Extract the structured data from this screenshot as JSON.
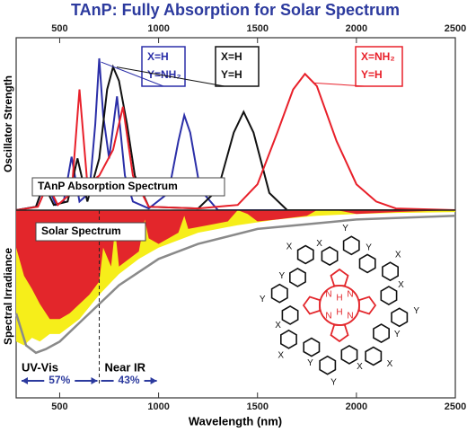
{
  "chart_data": [
    {
      "type": "line",
      "title": "TAnP: Fully Absorption for Solar Spectrum",
      "ylabel": "Oscillator  Strength",
      "label": "TAnP  Absorption  Spectrum",
      "xlim": [
        280,
        2500
      ],
      "xticks": [
        500,
        1000,
        1500,
        2000,
        2500
      ],
      "ylim": [
        0,
        1
      ],
      "series": [
        {
          "color": "#2b2fa8",
          "label_lines": [
            "X=H",
            "Y=NH₂"
          ],
          "x": [
            280,
            380,
            430,
            480,
            520,
            560,
            600,
            650,
            680,
            700,
            720,
            750,
            790,
            830,
            870,
            950,
            1050,
            1100,
            1130,
            1160,
            1210,
            1300,
            2500
          ],
          "values": [
            0,
            0.02,
            0.17,
            0.03,
            0.05,
            0.31,
            0.05,
            0.1,
            0.5,
            0.88,
            0.55,
            0.3,
            0.66,
            0.2,
            0.05,
            0.01,
            0.1,
            0.4,
            0.55,
            0.45,
            0.12,
            0,
            0
          ]
        },
        {
          "color": "#111111",
          "label_lines": [
            "X=H",
            "Y=H"
          ],
          "x": [
            280,
            380,
            420,
            470,
            540,
            590,
            640,
            700,
            740,
            770,
            800,
            840,
            880,
            950,
            1200,
            1300,
            1380,
            1430,
            1480,
            1560,
            1650,
            2500
          ],
          "values": [
            0,
            0.02,
            0.15,
            0.03,
            0.05,
            0.3,
            0.05,
            0.3,
            0.7,
            0.83,
            0.75,
            0.5,
            0.2,
            0.02,
            0.01,
            0.12,
            0.45,
            0.57,
            0.45,
            0.1,
            0,
            0
          ]
        },
        {
          "color": "#e8202a",
          "label_lines": [
            "X=NH₂",
            "Y=H"
          ],
          "x": [
            280,
            390,
            440,
            490,
            560,
            600,
            640,
            700,
            770,
            820,
            870,
            950,
            1200,
            1400,
            1500,
            1600,
            1680,
            1740,
            1800,
            1900,
            2000,
            2100,
            2200,
            2500
          ],
          "values": [
            0,
            0.02,
            0.15,
            0.03,
            0.1,
            0.7,
            0.15,
            0.2,
            0.35,
            0.6,
            0.2,
            0.02,
            0.01,
            0.03,
            0.15,
            0.45,
            0.7,
            0.79,
            0.72,
            0.4,
            0.15,
            0.05,
            0.01,
            0
          ]
        }
      ]
    },
    {
      "type": "area",
      "ylabel": "Spectral  Irradiance",
      "xlabel": "Wavelength (nm)",
      "label": "Solar  Spectrum",
      "xlim": [
        280,
        2500
      ],
      "xticks": [
        500,
        1000,
        1500,
        2000,
        2500
      ],
      "ylim": [
        0,
        1
      ],
      "divider_x": 700,
      "regions": [
        {
          "label": "UV-Vis",
          "share": "57%"
        },
        {
          "label": "Near  IR",
          "share": "43%"
        }
      ],
      "series": [
        {
          "color": "#f6ee1a",
          "x": [
            280,
            320,
            360,
            400,
            450,
            500,
            550,
            600,
            700,
            800,
            900,
            1000,
            1200,
            1400,
            1600,
            1800,
            2000,
            2200,
            2500
          ],
          "values": [
            0.7,
            0.72,
            0.68,
            0.7,
            0.66,
            0.66,
            0.62,
            0.58,
            0.45,
            0.34,
            0.26,
            0.2,
            0.12,
            0.08,
            0.05,
            0.03,
            0.02,
            0.015,
            0.01
          ]
        },
        {
          "color": "#e3262b",
          "x": [
            280,
            320,
            360,
            400,
            450,
            500,
            550,
            600,
            650,
            700,
            720,
            760,
            780,
            800,
            900,
            930,
            950,
            1000,
            1100,
            1130,
            1150,
            1250,
            1350,
            1400,
            1450,
            1500,
            1600,
            1750,
            1800,
            1900,
            1950,
            2000,
            2200,
            2500
          ],
          "values": [
            0.2,
            0.35,
            0.42,
            0.5,
            0.58,
            0.58,
            0.55,
            0.5,
            0.45,
            0.38,
            0.2,
            0.3,
            0.1,
            0.3,
            0.22,
            0.05,
            0.15,
            0.18,
            0.12,
            0.03,
            0.1,
            0.08,
            0.06,
            0,
            0.02,
            0.06,
            0.05,
            0.03,
            0,
            0,
            0.01,
            0.02,
            0.01,
            0
          ]
        },
        {
          "color": "#8a8a8a",
          "line": true,
          "x": [
            280,
            330,
            380,
            430,
            500,
            600,
            700,
            800,
            1000,
            1200,
            1500,
            2000,
            2500
          ],
          "values": [
            0.55,
            0.72,
            0.76,
            0.74,
            0.7,
            0.6,
            0.5,
            0.4,
            0.26,
            0.18,
            0.1,
            0.05,
            0.03
          ]
        }
      ],
      "structure_labels": [
        "Y",
        "Y",
        "X",
        "X",
        "Y",
        "Y",
        "X",
        "X",
        "Y",
        "Y",
        "X",
        "X",
        "Y",
        "Y",
        "X",
        "X",
        "N",
        "N",
        "N",
        "N",
        "H",
        "H"
      ]
    }
  ]
}
